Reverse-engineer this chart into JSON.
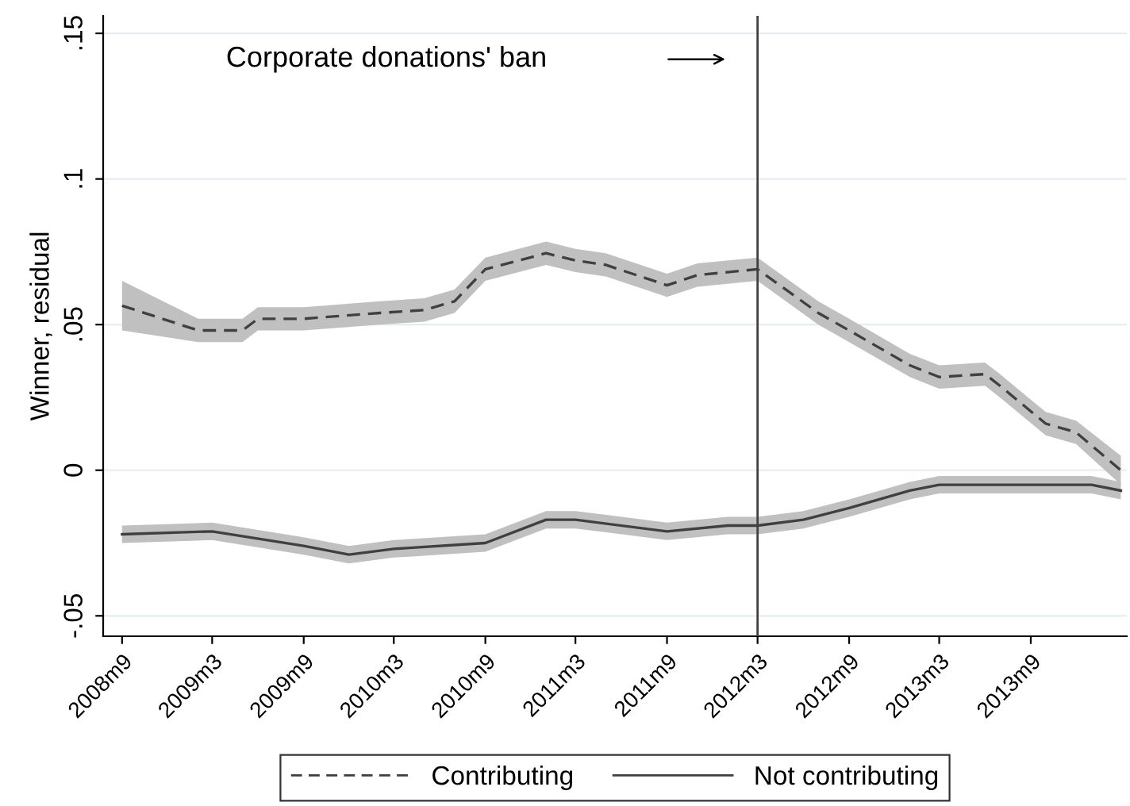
{
  "chart_data": {
    "type": "line",
    "ylabel": "Winner, residual",
    "annotations": [
      "Corporate donations' ban"
    ],
    "series": [
      {
        "name": "Contributing",
        "color": "#404040",
        "line_style": "dashed",
        "x": [
          "2008-09",
          "2009-02",
          "2009-05",
          "2009-06",
          "2009-09",
          "2010-02",
          "2010-05",
          "2010-07",
          "2010-09",
          "2011-01",
          "2011-03",
          "2011-05",
          "2011-09",
          "2011-11",
          "2012-03",
          "2012-07",
          "2012-09",
          "2013-01",
          "2013-03",
          "2013-06",
          "2013-07",
          "2013-10",
          "2013-12",
          "2014-03"
        ],
        "values": [
          0.0565,
          0.048,
          0.048,
          0.052,
          0.052,
          0.054,
          0.055,
          0.058,
          0.069,
          0.0745,
          0.072,
          0.0705,
          0.0635,
          0.067,
          0.069,
          0.054,
          0.048,
          0.036,
          0.032,
          0.033,
          0.029,
          0.016,
          0.013,
          0.0
        ],
        "lower": [
          0.048,
          0.044,
          0.044,
          0.048,
          0.048,
          0.05,
          0.051,
          0.054,
          0.065,
          0.0705,
          0.068,
          0.0665,
          0.0595,
          0.063,
          0.065,
          0.05,
          0.044,
          0.032,
          0.028,
          0.029,
          0.025,
          0.012,
          0.009,
          -0.005
        ],
        "upper": [
          0.065,
          0.052,
          0.052,
          0.056,
          0.056,
          0.058,
          0.059,
          0.062,
          0.073,
          0.0785,
          0.076,
          0.0745,
          0.0675,
          0.071,
          0.073,
          0.058,
          0.052,
          0.04,
          0.036,
          0.037,
          0.033,
          0.02,
          0.017,
          0.005
        ]
      },
      {
        "name": "Not contributing",
        "color": "#404040",
        "line_style": "solid",
        "x": [
          "2008-09",
          "2009-03",
          "2009-09",
          "2009-12",
          "2010-03",
          "2010-09",
          "2011-01",
          "2011-03",
          "2011-09",
          "2012-01",
          "2012-03",
          "2012-06",
          "2012-09",
          "2013-01",
          "2013-03",
          "2013-09",
          "2014-01",
          "2014-03"
        ],
        "values": [
          -0.022,
          -0.021,
          -0.026,
          -0.029,
          -0.027,
          -0.025,
          -0.017,
          -0.017,
          -0.021,
          -0.019,
          -0.019,
          -0.017,
          -0.013,
          -0.007,
          -0.005,
          -0.005,
          -0.005,
          -0.007
        ],
        "lower": [
          -0.025,
          -0.024,
          -0.029,
          -0.032,
          -0.03,
          -0.028,
          -0.02,
          -0.02,
          -0.024,
          -0.022,
          -0.022,
          -0.02,
          -0.016,
          -0.01,
          -0.008,
          -0.008,
          -0.008,
          -0.01
        ],
        "upper": [
          -0.019,
          -0.018,
          -0.023,
          -0.026,
          -0.024,
          -0.022,
          -0.014,
          -0.014,
          -0.018,
          -0.016,
          -0.016,
          -0.014,
          -0.01,
          -0.004,
          -0.002,
          -0.002,
          -0.002,
          -0.004
        ]
      }
    ],
    "ref_lines": [
      {
        "axis": "x",
        "value": "2012-03",
        "color": "#404040"
      }
    ],
    "xlim": [
      "2008-07-25",
      "2014-03-13"
    ],
    "ylim": [
      -0.057,
      0.156
    ],
    "xticks": [
      {
        "value": "2008-09",
        "label": "2008m9"
      },
      {
        "value": "2009-03",
        "label": "2009m3"
      },
      {
        "value": "2009-09",
        "label": "2009m9"
      },
      {
        "value": "2010-03",
        "label": "2010m3"
      },
      {
        "value": "2010-09",
        "label": "2010m9"
      },
      {
        "value": "2011-03",
        "label": "2011m3"
      },
      {
        "value": "2011-09",
        "label": "2011m9"
      },
      {
        "value": "2012-03",
        "label": "2012m3"
      },
      {
        "value": "2012-09",
        "label": "2012m9"
      },
      {
        "value": "2013-03",
        "label": "2013m3"
      },
      {
        "value": "2013-09",
        "label": "2013m9"
      }
    ],
    "yticks": [
      {
        "value": -0.05,
        "label": "-.05"
      },
      {
        "value": 0,
        "label": "0"
      },
      {
        "value": 0.05,
        "label": ".05"
      },
      {
        "value": 0.1,
        "label": ".1"
      },
      {
        "value": 0.15,
        "label": ".15"
      }
    ],
    "grid": "y",
    "legend": "bottom",
    "marker": "none"
  }
}
